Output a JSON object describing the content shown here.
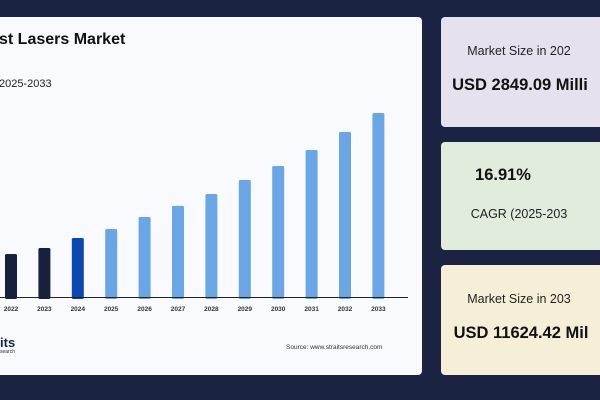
{
  "chart_data": {
    "type": "bar",
    "title": "st Lasers Market",
    "subtitle": "2025-2033",
    "categories": [
      "2022",
      "2023",
      "2024",
      "2025",
      "2026",
      "2027",
      "2028",
      "2029",
      "2030",
      "2031",
      "2032",
      "2033"
    ],
    "values": [
      1730,
      2150,
      2849,
      3480,
      4320,
      5100,
      5940,
      6920,
      7900,
      9030,
      10290,
      11624
    ],
    "colors": {
      "historical": "#17213d",
      "base_year": "#0a47b0",
      "forecast": "#6aa6e6"
    },
    "grid": false,
    "legend": "none"
  },
  "source": "Source: www.straitsresearch.com",
  "logo": {
    "line1": "its",
    "line2": "search"
  },
  "cards": [
    {
      "label": "Market Size in 202",
      "value": "USD 2849.09 Milli"
    },
    {
      "value": "16.91%",
      "label": "CAGR (2025-203"
    },
    {
      "label": "Market Size in 203",
      "value": "USD 11624.42 Mil"
    }
  ]
}
